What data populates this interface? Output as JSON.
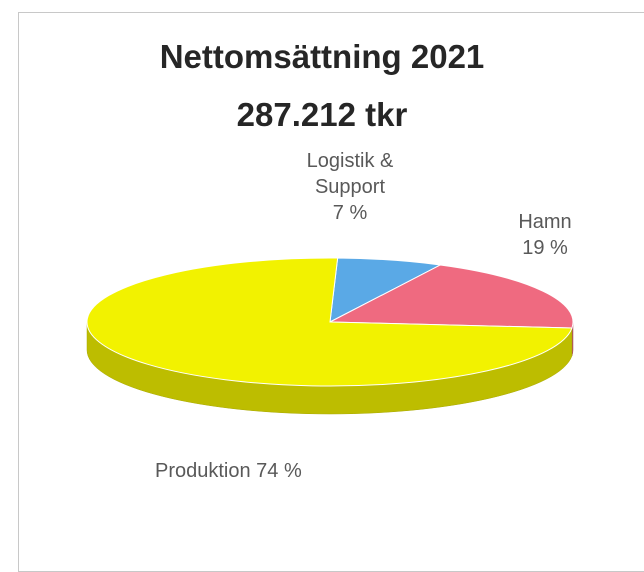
{
  "chart_data": {
    "type": "pie",
    "title": "Nettomsättning 2021",
    "subtitle": "287.212 tkr",
    "slices": [
      {
        "name": "Produktion",
        "value": 74,
        "label": "Produktion 74 %",
        "color": "#f2f200"
      },
      {
        "name": "Logistik & Support",
        "value": 7,
        "label_lines": [
          "Logistik &",
          "Support",
          "7 %"
        ],
        "color": "#5aa9e6"
      },
      {
        "name": "Hamn",
        "value": 19,
        "label_lines": [
          "Hamn",
          "19 %"
        ],
        "color": "#ef6a80"
      }
    ],
    "style": "3d"
  }
}
